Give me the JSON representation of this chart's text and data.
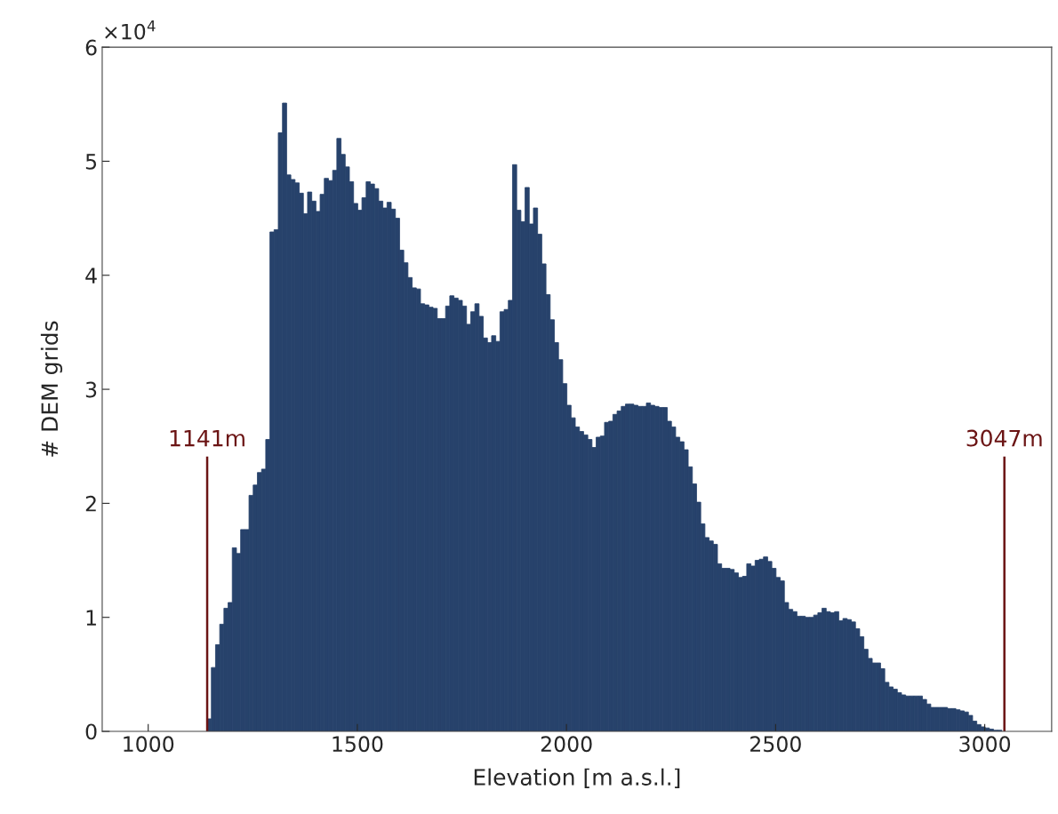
{
  "chart_data": {
    "type": "histogram",
    "xlabel": "Elevation [m a.s.l.]",
    "ylabel": "# DEM grids",
    "annotations": [
      "×10$^{4}$"
    ],
    "color": "#27426b",
    "bins": [
      1141,
      1151,
      1161,
      1171,
      1181,
      1191,
      1201,
      1211,
      1221,
      1231,
      1241,
      1251,
      1261,
      1271,
      1281,
      1291,
      1301,
      1311,
      1321,
      1331,
      1341,
      1351,
      1361,
      1371,
      1381,
      1391,
      1401,
      1411,
      1421,
      1431,
      1441,
      1451,
      1461,
      1471,
      1481,
      1491,
      1501,
      1511,
      1521,
      1531,
      1541,
      1551,
      1561,
      1571,
      1581,
      1591,
      1601,
      1611,
      1621,
      1631,
      1641,
      1651,
      1661,
      1671,
      1681,
      1691,
      1701,
      1711,
      1721,
      1731,
      1741,
      1751,
      1761,
      1771,
      1781,
      1791,
      1801,
      1811,
      1821,
      1831,
      1841,
      1851,
      1861,
      1871,
      1881,
      1891,
      1901,
      1911,
      1921,
      1931,
      1941,
      1951,
      1961,
      1971,
      1981,
      1991,
      2001,
      2011,
      2021,
      2031,
      2041,
      2051,
      2061,
      2071,
      2081,
      2091,
      2101,
      2111,
      2121,
      2131,
      2141,
      2151,
      2161,
      2171,
      2181,
      2191,
      2201,
      2211,
      2221,
      2231,
      2241,
      2251,
      2261,
      2271,
      2281,
      2291,
      2301,
      2311,
      2321,
      2331,
      2341,
      2351,
      2361,
      2371,
      2381,
      2391,
      2401,
      2411,
      2421,
      2431,
      2441,
      2451,
      2461,
      2471,
      2481,
      2491,
      2501,
      2511,
      2521,
      2531,
      2541,
      2551,
      2561,
      2571,
      2581,
      2591,
      2601,
      2611,
      2621,
      2631,
      2641,
      2651,
      2661,
      2671,
      2681,
      2691,
      2701,
      2711,
      2721,
      2731,
      2741,
      2751,
      2761,
      2771,
      2781,
      2791,
      2801,
      2811,
      2821,
      2831,
      2841,
      2851,
      2861,
      2871,
      2881,
      2891,
      2901,
      2911,
      2921,
      2931,
      2941,
      2951,
      2961,
      2971,
      2981,
      2991,
      3001,
      3011,
      3021,
      3031,
      3041
    ],
    "values": [
      0.11,
      0.56,
      0.76,
      0.94,
      1.08,
      1.13,
      1.61,
      1.56,
      1.77,
      1.77,
      2.07,
      2.16,
      2.27,
      2.3,
      2.56,
      4.38,
      4.4,
      5.25,
      5.51,
      4.88,
      4.84,
      4.81,
      4.72,
      4.54,
      4.73,
      4.65,
      4.56,
      4.71,
      4.85,
      4.83,
      4.92,
      5.2,
      5.06,
      4.95,
      4.82,
      4.63,
      4.57,
      4.68,
      4.82,
      4.8,
      4.76,
      4.65,
      4.59,
      4.64,
      4.58,
      4.5,
      4.22,
      4.11,
      3.98,
      3.89,
      3.88,
      3.75,
      3.74,
      3.72,
      3.71,
      3.62,
      3.62,
      3.73,
      3.82,
      3.8,
      3.78,
      3.73,
      3.57,
      3.68,
      3.75,
      3.64,
      3.45,
      3.41,
      3.47,
      3.42,
      3.68,
      3.7,
      3.78,
      4.97,
      4.57,
      4.47,
      4.77,
      4.45,
      4.59,
      4.36,
      4.1,
      3.83,
      3.61,
      3.41,
      3.26,
      3.05,
      2.86,
      2.75,
      2.67,
      2.63,
      2.6,
      2.56,
      2.49,
      2.58,
      2.59,
      2.71,
      2.72,
      2.78,
      2.81,
      2.85,
      2.87,
      2.87,
      2.86,
      2.85,
      2.85,
      2.88,
      2.86,
      2.85,
      2.84,
      2.84,
      2.72,
      2.67,
      2.58,
      2.54,
      2.47,
      2.32,
      2.17,
      2.01,
      1.82,
      1.7,
      1.67,
      1.64,
      1.47,
      1.43,
      1.43,
      1.42,
      1.39,
      1.35,
      1.36,
      1.47,
      1.45,
      1.5,
      1.51,
      1.53,
      1.49,
      1.43,
      1.35,
      1.32,
      1.13,
      1.07,
      1.05,
      1.01,
      1.01,
      1.0,
      1.0,
      1.02,
      1.04,
      1.08,
      1.05,
      1.04,
      1.05,
      0.97,
      0.99,
      0.98,
      0.96,
      0.9,
      0.83,
      0.72,
      0.64,
      0.6,
      0.6,
      0.55,
      0.43,
      0.39,
      0.37,
      0.34,
      0.32,
      0.31,
      0.31,
      0.31,
      0.31,
      0.28,
      0.24,
      0.21,
      0.21,
      0.21,
      0.21,
      0.2,
      0.2,
      0.19,
      0.18,
      0.17,
      0.14,
      0.09,
      0.06,
      0.04,
      0.03,
      0.02,
      0.01,
      0.01
    ],
    "xlim": [
      890,
      3160
    ],
    "xticks": [
      1000,
      1500,
      2000,
      2500,
      3000
    ],
    "ylim": [
      0,
      6
    ],
    "yticks": [
      0,
      1,
      2,
      3,
      4,
      5,
      6
    ],
    "ref_lines": [
      {
        "axis": "x",
        "value": 1141,
        "label": "1141m",
        "color": "#6b1414"
      },
      {
        "axis": "x",
        "value": 3047,
        "label": "3047m",
        "color": "#6b1414"
      }
    ],
    "grid": false
  }
}
